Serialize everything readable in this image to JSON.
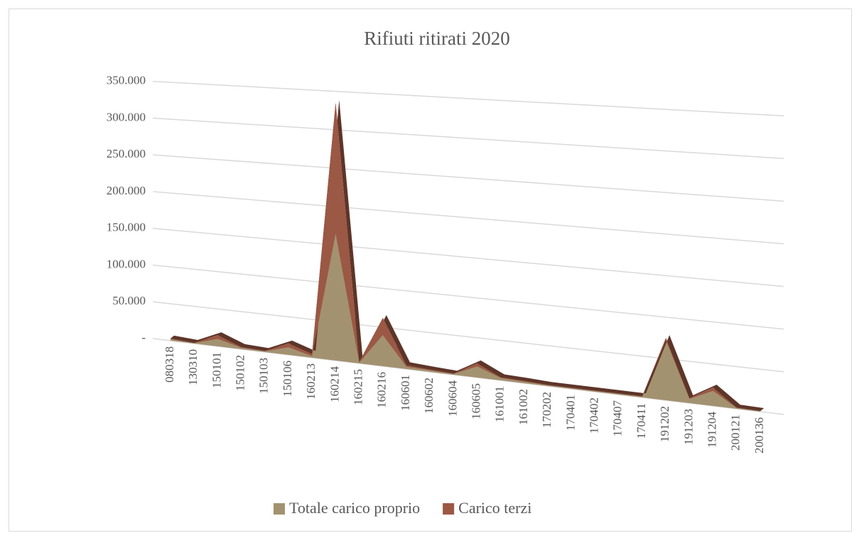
{
  "chart_data": {
    "type": "area3d",
    "title": "Rifiuti ritirati 2020",
    "categories": [
      "080318",
      "130310",
      "150101",
      "150102",
      "150103",
      "150106",
      "160213",
      "160214",
      "160215",
      "160216",
      "160601",
      "160602",
      "160604",
      "160605",
      "161001",
      "161002",
      "170202",
      "170401",
      "170402",
      "170407",
      "170411",
      "191202",
      "191203",
      "191204",
      "200121",
      "200136"
    ],
    "series": [
      {
        "name": "Totale carico proprio",
        "color": "#a39270",
        "values": [
          2000,
          500,
          10000,
          2000,
          1000,
          10000,
          2000,
          165000,
          1000,
          40000,
          3000,
          2000,
          1000,
          14000,
          3000,
          2000,
          1000,
          1000,
          1000,
          1000,
          1000,
          72000,
          5000,
          18000,
          1000,
          500
        ]
      },
      {
        "name": "Carico terzi",
        "color": "#9b5844",
        "values": [
          1000,
          500,
          5000,
          1000,
          500,
          5000,
          3000,
          170000,
          1000,
          22000,
          2000,
          1000,
          500,
          4000,
          1000,
          1000,
          500,
          500,
          500,
          500,
          500,
          3000,
          1000,
          4000,
          500,
          300
        ]
      }
    ],
    "ylim": [
      0,
      350000
    ],
    "yticks": [
      {
        "value": 0,
        "label": "-"
      },
      {
        "value": 50000,
        "label": "50.000"
      },
      {
        "value": 100000,
        "label": "100.000"
      },
      {
        "value": 150000,
        "label": "150.000"
      },
      {
        "value": 200000,
        "label": "200.000"
      },
      {
        "value": 250000,
        "label": "250.000"
      },
      {
        "value": 300000,
        "label": "300.000"
      },
      {
        "value": 350000,
        "label": "350.000"
      }
    ],
    "grid": true,
    "legend": "bottom"
  }
}
